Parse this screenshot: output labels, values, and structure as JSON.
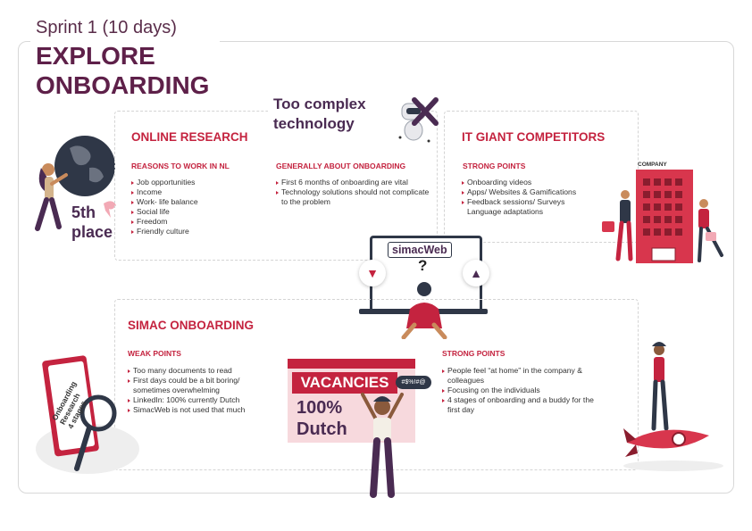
{
  "header": {
    "sprint": "Sprint 1 (10 days)",
    "title_line1": "EXPLORE",
    "title_line2": "ONBOARDING"
  },
  "place_badge": {
    "line1": "5th",
    "line2": "place"
  },
  "too_complex": {
    "line1": "Too complex",
    "line2": "technology"
  },
  "online_research": {
    "title": "ONLINE RESEARCH",
    "reasons_heading": "REASONS TO WORK IN NL",
    "reasons": [
      "Job opportunities",
      "Income",
      "Work- life balance",
      "Social life",
      "Freedom",
      "Friendly culture"
    ],
    "general_heading": "GENERALLY ABOUT ONBOARDING",
    "general": [
      "First 6 months of onboarding are vital",
      "Technology solutions should not complicate to the problem"
    ]
  },
  "competitors": {
    "title": "IT GIANT COMPETITORS",
    "strong_heading": "STRONG POINTS",
    "strong": [
      "Onboarding videos",
      "Apps/ Websites & Gamifications",
      "Feedback sessions/ Surveys Language adaptations"
    ],
    "building_label": "COMPANY"
  },
  "laptop": {
    "label": "simacWeb",
    "question": "?"
  },
  "simac": {
    "title": "SIMAC ONBOARDING",
    "weak_heading": "WEAK POINTS",
    "weak": [
      "Too many documents to read",
      "First days could be a bit boring/ sometimes overwhelming",
      "LinkedIn: 100% currently Dutch",
      "SimacWeb is not used that much"
    ],
    "strong_heading": "STRONG POINTS",
    "strong": [
      "People feel “at home” in the company & colleagues",
      "Focusing on the individuals",
      "4 stages of onboarding and a buddy for the first day"
    ]
  },
  "vacancies": {
    "banner": "VACANCIES",
    "line1": "100%",
    "line2": "Dutch",
    "speech": "#$%!#@"
  },
  "clipboard": {
    "line1": "Onboarding",
    "line2": "Research",
    "line3": "4 stages"
  },
  "colors": {
    "accent": "#c4233f",
    "title": "#5e2049",
    "dark": "#2f3747"
  }
}
